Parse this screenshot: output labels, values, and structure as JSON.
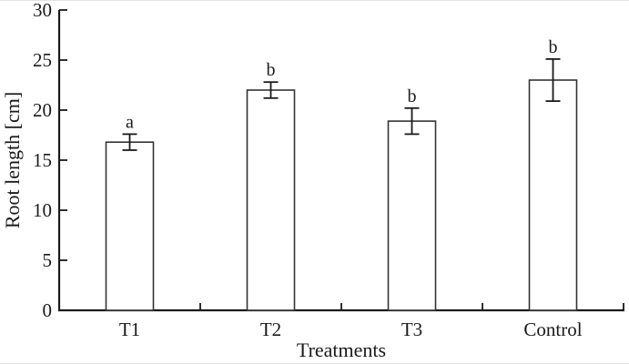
{
  "chart_data": {
    "type": "bar",
    "title": "",
    "xlabel": "Treatments",
    "ylabel": "Root length [cm]",
    "categories": [
      "T1",
      "T2",
      "T3",
      "Control"
    ],
    "values": [
      16.8,
      22.0,
      18.9,
      23.0
    ],
    "error_bars": [
      0.8,
      0.8,
      1.3,
      2.1
    ],
    "significance_letters": [
      "a",
      "b",
      "b",
      "b"
    ],
    "ylim": [
      0,
      30
    ],
    "yticks": [
      0,
      5,
      10,
      15,
      20,
      25,
      30
    ],
    "grid": "off",
    "legend": "none",
    "tick_style": "inside",
    "bar_fill": "#ffffff",
    "bar_border": "#333333",
    "axis_color": "#1a1a1a",
    "text_color": "#1a1a1a",
    "background": "#ffffff"
  }
}
